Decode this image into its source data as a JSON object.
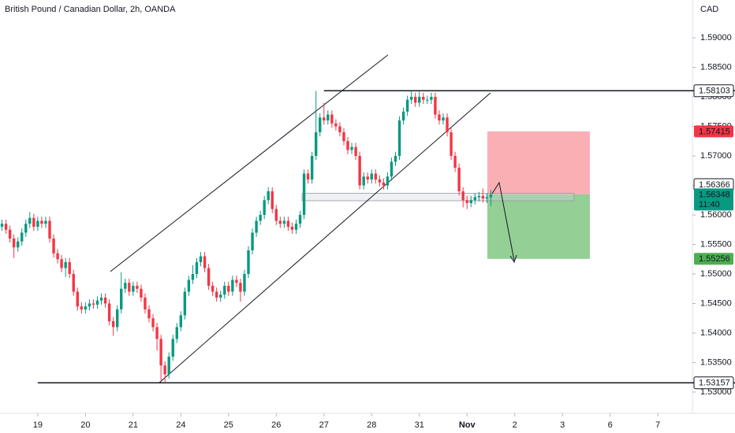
{
  "header": {
    "title": "British Pound / Canadian Dollar, 2h, OANDA",
    "currency": "CAD"
  },
  "chart_data": {
    "type": "candlestick",
    "open": [
      1.558,
      1.5585,
      1.5575,
      1.556,
      1.5545,
      1.5555,
      1.557,
      1.5585,
      1.5595,
      1.558,
      1.559,
      1.5585,
      1.559,
      1.556,
      1.5535,
      1.5525,
      1.551,
      1.552,
      1.55,
      1.547,
      1.5445,
      1.544,
      1.5445,
      1.545,
      1.5448,
      1.5455,
      1.546,
      1.545,
      1.542,
      1.541,
      1.544,
      1.5475,
      1.5485,
      1.547,
      1.548,
      1.5475,
      1.546,
      1.544,
      1.5425,
      1.541,
      1.539,
      1.5345,
      1.533,
      1.536,
      1.539,
      1.541,
      1.543,
      1.547,
      1.549,
      1.55,
      1.552,
      1.553,
      1.551,
      1.548,
      1.547,
      1.546,
      1.5465,
      1.548,
      1.547,
      1.549,
      1.5485,
      1.547,
      1.55,
      1.554,
      1.557,
      1.559,
      1.56,
      1.5625,
      1.564,
      1.561,
      1.559,
      1.5585,
      1.559,
      1.558,
      1.5575,
      1.5585,
      1.56,
      1.567,
      1.566,
      1.57,
      1.574,
      1.5765,
      1.576,
      1.577,
      1.5755,
      1.575,
      1.574,
      1.5725,
      1.571,
      1.5715,
      1.57,
      1.565,
      1.5665,
      1.566,
      1.567,
      1.566,
      1.5655,
      1.565,
      1.5665,
      1.569,
      1.57,
      1.576,
      1.5775,
      1.5795,
      1.58,
      1.579,
      1.58,
      1.5795,
      1.5795,
      1.58,
      1.577,
      1.576,
      1.5765,
      1.574,
      1.57,
      1.568,
      1.564,
      1.5625,
      1.562,
      1.5625,
      1.563,
      1.5632,
      1.5628,
      1.563
    ],
    "high": [
      1.5592,
      1.5592,
      1.5582,
      1.5567,
      1.5562,
      1.5577,
      1.5592,
      1.5605,
      1.5602,
      1.5597,
      1.5597,
      1.5597,
      1.5597,
      1.5567,
      1.5542,
      1.5532,
      1.5527,
      1.5527,
      1.5507,
      1.5477,
      1.5452,
      1.5452,
      1.5457,
      1.5457,
      1.5462,
      1.5467,
      1.5467,
      1.5457,
      1.5427,
      1.5447,
      1.5503,
      1.5492,
      1.5492,
      1.5487,
      1.5487,
      1.5482,
      1.5467,
      1.5447,
      1.5432,
      1.5417,
      1.5397,
      1.5352,
      1.5367,
      1.5397,
      1.5417,
      1.5437,
      1.5477,
      1.5497,
      1.5515,
      1.5527,
      1.5537,
      1.5537,
      1.5517,
      1.5487,
      1.5477,
      1.5472,
      1.5487,
      1.5487,
      1.5497,
      1.5497,
      1.5492,
      1.5507,
      1.5547,
      1.5577,
      1.5597,
      1.5607,
      1.5632,
      1.5647,
      1.5647,
      1.5617,
      1.5597,
      1.5597,
      1.5597,
      1.5587,
      1.5592,
      1.5607,
      1.5677,
      1.5677,
      1.5707,
      1.581,
      1.5772,
      1.579,
      1.5777,
      1.5777,
      1.5762,
      1.5757,
      1.5747,
      1.5732,
      1.5722,
      1.5722,
      1.5707,
      1.5672,
      1.5672,
      1.5677,
      1.5677,
      1.5667,
      1.5662,
      1.5672,
      1.5697,
      1.5707,
      1.5767,
      1.5782,
      1.5802,
      1.581,
      1.5807,
      1.581,
      1.5807,
      1.5802,
      1.5807,
      1.5807,
      1.5777,
      1.5772,
      1.5772,
      1.5747,
      1.5707,
      1.5687,
      1.5647,
      1.5632,
      1.5632,
      1.5637,
      1.5639,
      1.5645,
      1.5637,
      1.5642
    ],
    "low": [
      1.5573,
      1.5568,
      1.5553,
      1.5527,
      1.5538,
      1.5548,
      1.5563,
      1.5578,
      1.5573,
      1.5573,
      1.5578,
      1.5578,
      1.5553,
      1.5528,
      1.5518,
      1.5503,
      1.5495,
      1.5493,
      1.5463,
      1.5438,
      1.5433,
      1.5433,
      1.5438,
      1.5441,
      1.5441,
      1.5448,
      1.5443,
      1.5413,
      1.5395,
      1.5403,
      1.5433,
      1.5468,
      1.5463,
      1.5463,
      1.5468,
      1.5453,
      1.5433,
      1.5418,
      1.5403,
      1.537,
      1.532,
      1.5316,
      1.5323,
      1.5353,
      1.5383,
      1.5403,
      1.5423,
      1.5463,
      1.5483,
      1.5493,
      1.5513,
      1.5503,
      1.5473,
      1.5463,
      1.5453,
      1.5453,
      1.5458,
      1.5463,
      1.5463,
      1.5478,
      1.5453,
      1.5463,
      1.5493,
      1.5533,
      1.5563,
      1.5583,
      1.5593,
      1.5618,
      1.5603,
      1.5583,
      1.5578,
      1.5578,
      1.5573,
      1.5568,
      1.5568,
      1.5578,
      1.5593,
      1.5653,
      1.5653,
      1.5693,
      1.5733,
      1.5753,
      1.5753,
      1.5748,
      1.5743,
      1.5733,
      1.5718,
      1.5703,
      1.5703,
      1.5693,
      1.5643,
      1.5643,
      1.5653,
      1.5653,
      1.5653,
      1.5648,
      1.5643,
      1.5643,
      1.5658,
      1.5683,
      1.5693,
      1.5753,
      1.5768,
      1.5788,
      1.5783,
      1.5783,
      1.5788,
      1.5788,
      1.5788,
      1.5763,
      1.5753,
      1.5753,
      1.5733,
      1.5693,
      1.5673,
      1.5633,
      1.5613,
      1.561,
      1.5613,
      1.5618,
      1.5623,
      1.5621,
      1.562,
      1.5615
    ],
    "close": [
      1.5585,
      1.5575,
      1.556,
      1.5545,
      1.5555,
      1.557,
      1.5585,
      1.5595,
      1.558,
      1.559,
      1.5585,
      1.559,
      1.556,
      1.5535,
      1.5525,
      1.551,
      1.552,
      1.55,
      1.547,
      1.5445,
      1.544,
      1.5445,
      1.545,
      1.5448,
      1.5455,
      1.546,
      1.545,
      1.542,
      1.541,
      1.544,
      1.5475,
      1.5485,
      1.547,
      1.548,
      1.5475,
      1.546,
      1.544,
      1.5425,
      1.541,
      1.539,
      1.5345,
      1.533,
      1.536,
      1.539,
      1.541,
      1.543,
      1.547,
      1.549,
      1.55,
      1.552,
      1.553,
      1.551,
      1.548,
      1.547,
      1.546,
      1.5465,
      1.548,
      1.547,
      1.549,
      1.5485,
      1.547,
      1.55,
      1.554,
      1.557,
      1.559,
      1.56,
      1.5625,
      1.564,
      1.561,
      1.559,
      1.5585,
      1.559,
      1.558,
      1.5575,
      1.5585,
      1.56,
      1.567,
      1.566,
      1.57,
      1.574,
      1.5765,
      1.576,
      1.577,
      1.5755,
      1.575,
      1.574,
      1.5725,
      1.571,
      1.5715,
      1.57,
      1.565,
      1.5665,
      1.566,
      1.567,
      1.566,
      1.5655,
      1.565,
      1.5665,
      1.569,
      1.57,
      1.576,
      1.5775,
      1.5795,
      1.58,
      1.579,
      1.58,
      1.5795,
      1.5795,
      1.58,
      1.577,
      1.576,
      1.5765,
      1.574,
      1.57,
      1.568,
      1.564,
      1.5625,
      1.562,
      1.5625,
      1.563,
      1.5632,
      1.5628,
      1.563,
      1.56348
    ],
    "up_color": "#089981",
    "down_color": "#f23645",
    "xlim": [
      -0.5,
      173.7
    ],
    "xticks": [
      {
        "value": 9,
        "label": "19"
      },
      {
        "value": 21,
        "label": "20"
      },
      {
        "value": 33,
        "label": "21"
      },
      {
        "value": 45,
        "label": "24"
      },
      {
        "value": 57,
        "label": "25"
      },
      {
        "value": 69,
        "label": "26"
      },
      {
        "value": 81,
        "label": "27"
      },
      {
        "value": 93,
        "label": "28"
      },
      {
        "value": 105,
        "label": "31"
      },
      {
        "value": 117,
        "label": "Nov"
      },
      {
        "value": 129,
        "label": "2"
      },
      {
        "value": 141,
        "label": "3"
      },
      {
        "value": 153,
        "label": "6"
      },
      {
        "value": 165,
        "label": "7"
      }
    ],
    "ylim": [
      1.5264,
      1.5964
    ],
    "yticks": [
      {
        "value": 1.53,
        "label": "1.53000"
      },
      {
        "value": 1.535,
        "label": "1.53500"
      },
      {
        "value": 1.54,
        "label": "1.54000"
      },
      {
        "value": 1.545,
        "label": "1.54500"
      },
      {
        "value": 1.55,
        "label": "1.55000"
      },
      {
        "value": 1.555,
        "label": "1.55500"
      },
      {
        "value": 1.56,
        "label": "1.56000"
      },
      {
        "value": 1.565,
        "label": "1.56500"
      },
      {
        "value": 1.57,
        "label": "1.57000"
      },
      {
        "value": 1.575,
        "label": "1.57500"
      },
      {
        "value": 1.58,
        "label": "1.58000"
      },
      {
        "value": 1.585,
        "label": "1.58500"
      },
      {
        "value": 1.59,
        "label": "1.59000"
      }
    ],
    "grid": false,
    "levels": [
      {
        "value": 1.58103,
        "from": 81
      },
      {
        "value": 1.53157,
        "from": 9
      }
    ],
    "trendlines": [
      [
        [
          27.25,
          1.5504
        ],
        [
          97.1,
          1.5871
        ]
      ],
      [
        [
          39.6,
          1.5316
        ],
        [
          122.9,
          1.58067
        ]
      ]
    ],
    "zone": {
      "low": 1.5624,
      "high": 1.56366,
      "from": 75.5,
      "to": 143.9
    },
    "position": {
      "stop": 1.57415,
      "entry": 1.56348,
      "target": 1.55256,
      "from": 122.1,
      "to": 147.9,
      "stop_color": "#f23645",
      "target_color": "#4caf50"
    },
    "countdown": "11:40"
  }
}
